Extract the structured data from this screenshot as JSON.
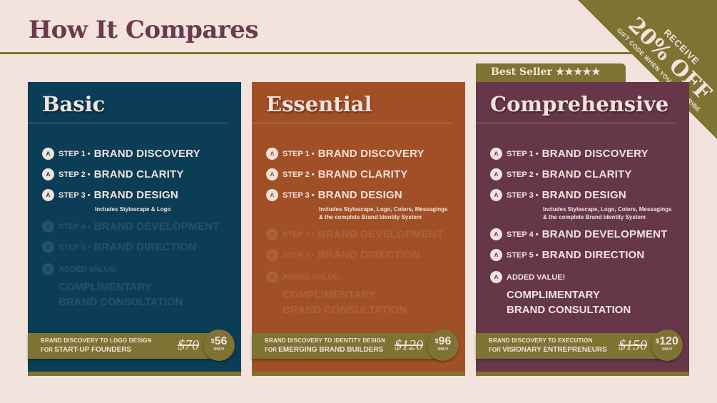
{
  "page": {
    "title": "How It Compares"
  },
  "promo": {
    "line1": "RECEIVE",
    "line2": "20% OFF",
    "line3": "GIFT CODE WHEN YOU SUBSCRIBE"
  },
  "badge": {
    "label": "Best Seller ★★★★★"
  },
  "colors": {
    "background": "#f2e3dc",
    "title": "#6b3a4c",
    "accent": "#7f7333",
    "basic": "#0b3d57",
    "essential": "#a14f26",
    "comprehensive": "#663749"
  },
  "plans": [
    {
      "name": "Basic",
      "color": "#0b3d57",
      "steps": [
        {
          "label": "STEP 1 •",
          "name": "BRAND DISCOVERY",
          "included": true
        },
        {
          "label": "STEP 2 •",
          "name": "BRAND CLARITY",
          "included": true
        },
        {
          "label": "STEP 3 •",
          "name": "BRAND DESIGN",
          "included": true,
          "sub": [
            "Includes Stylescape & Logo"
          ]
        },
        {
          "label": "STEP 4 •",
          "name": "BRAND DEVELOPMENT",
          "included": false
        },
        {
          "label": "STEP 5 •",
          "name": "BRAND DIRECTION",
          "included": false
        }
      ],
      "added": {
        "label": "ADDED VALUE!",
        "lines": [
          "COMPLIMENTARY",
          "BRAND CONSULTATION"
        ],
        "included": false
      },
      "range": "BRAND DISCOVERY TO LOGO DESIGN",
      "for": "FOR",
      "audience": "START-UP FOUNDERS",
      "old_price": "$70",
      "currency": "$",
      "price": "56",
      "only": "ONLY!"
    },
    {
      "name": "Essential",
      "color": "#a14f26",
      "steps": [
        {
          "label": "STEP 1 •",
          "name": "BRAND DISCOVERY",
          "included": true
        },
        {
          "label": "STEP 2 •",
          "name": "BRAND CLARITY",
          "included": true
        },
        {
          "label": "STEP 3 •",
          "name": "BRAND DESIGN",
          "included": true,
          "sub": [
            "Includes Stylescape, Logo, Colors, Messagings",
            "& the complete Brand Identity System"
          ]
        },
        {
          "label": "STEP 4 •",
          "name": "BRAND DEVELOPMENT",
          "included": false
        },
        {
          "label": "STEP 5 •",
          "name": "BRAND DIRECTION",
          "included": false
        }
      ],
      "added": {
        "label": "ADDED VALUE!",
        "lines": [
          "COMPLIMENTARY",
          "BRAND CONSULTATION"
        ],
        "included": false
      },
      "range": "BRAND DISCOVERY TO IDENTITY DESIGN",
      "for": "FOR",
      "audience": "EMERGING BRAND BUILDERS",
      "old_price": "$120",
      "currency": "$",
      "price": "96",
      "only": "ONLY!"
    },
    {
      "name": "Comprehensive",
      "color": "#663749",
      "steps": [
        {
          "label": "STEP 1 •",
          "name": "BRAND DISCOVERY",
          "included": true
        },
        {
          "label": "STEP 2 •",
          "name": "BRAND CLARITY",
          "included": true
        },
        {
          "label": "STEP 3 •",
          "name": "BRAND DESIGN",
          "included": true,
          "sub": [
            "Includes Stylescape, Logo, Colors, Messagings",
            "& the complete Brand Identity System"
          ]
        },
        {
          "label": "STEP 4 •",
          "name": "BRAND DEVELOPMENT",
          "included": true
        },
        {
          "label": "STEP 5 •",
          "name": "BRAND DIRECTION",
          "included": true
        }
      ],
      "added": {
        "label": "ADDED VALUE!",
        "lines": [
          "COMPLIMENTARY",
          "BRAND CONSULTATION"
        ],
        "included": true
      },
      "range": "BRAND DISCOVERY TO EXECUTION",
      "for": "FOR",
      "audience": "VISIONARY ENTREPRENEURS",
      "old_price": "$150",
      "currency": "$",
      "price": "120",
      "only": "ONLY!"
    }
  ]
}
